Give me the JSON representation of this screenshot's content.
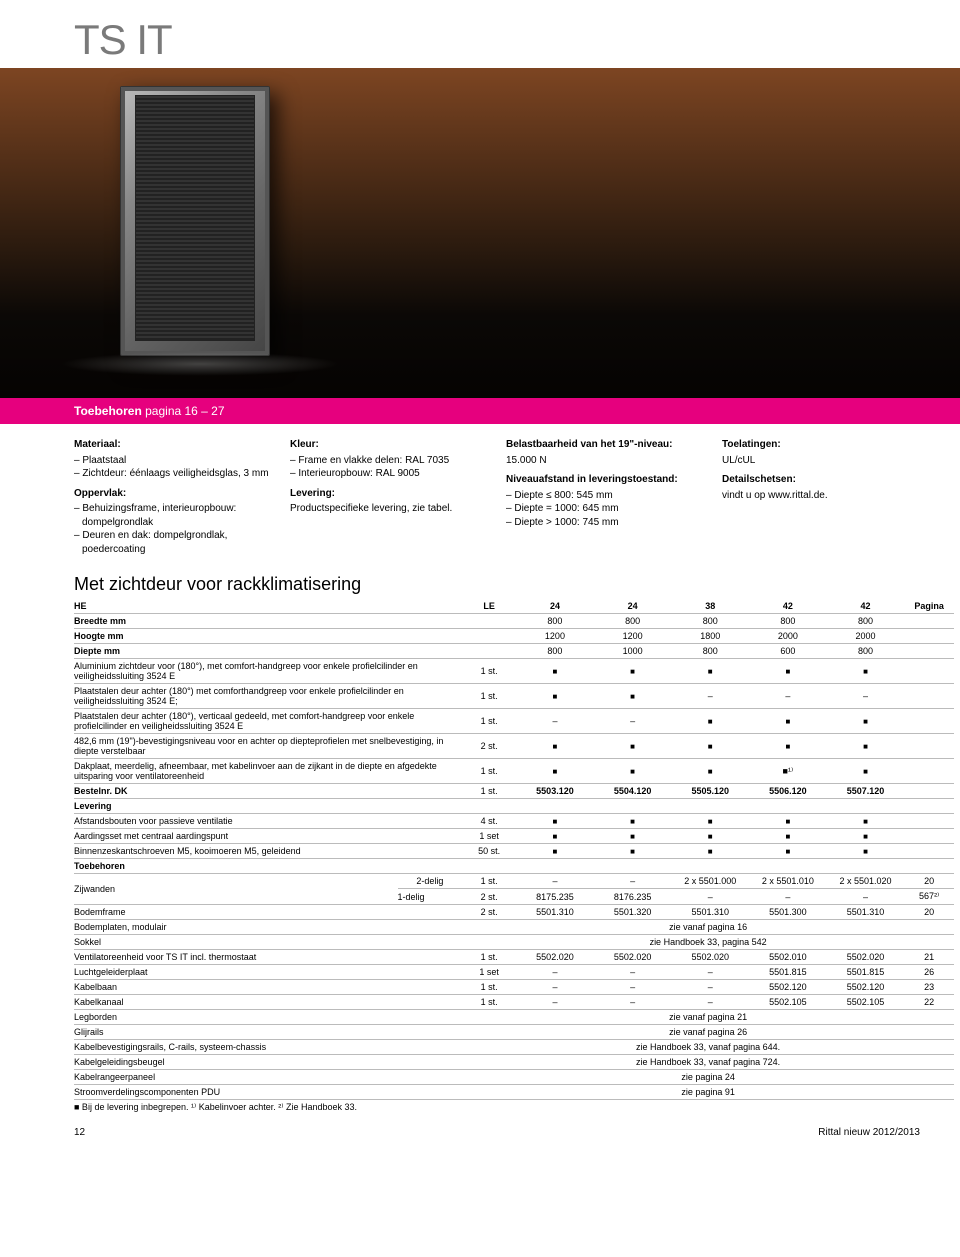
{
  "title": "TS IT",
  "toebehoren_bar": {
    "label": "Toebehoren",
    "range": "pagina 16 – 27"
  },
  "info": {
    "col1": {
      "heading1": "Materiaal:",
      "items1": [
        "Plaatstaal",
        "Zichtdeur: éénlaags veiligheidsglas, 3 mm"
      ],
      "heading2": "Oppervlak:",
      "items2": [
        "Behuizingsframe, interieur­opbouw: dompelgrondlak",
        "Deuren en dak: dompelgrondlak, poedercoating"
      ]
    },
    "col2": {
      "heading1": "Kleur:",
      "items1": [
        "Frame en vlakke delen: RAL 7035",
        "Interieuropbouw: RAL 9005"
      ],
      "heading2": "Levering:",
      "text2": "Productspecifieke levering, zie tabel."
    },
    "col3": {
      "heading1": "Belastbaarheid van het 19\"-niveau:",
      "text1": "15.000 N",
      "heading2": "Niveauafstand in leverings­toestand:",
      "items2": [
        "Diepte ≤ 800: 545 mm",
        "Diepte = 1000: 645 mm",
        "Diepte > 1000: 745 mm"
      ]
    },
    "col4": {
      "heading1": "Toelatingen:",
      "text1": "UL/cUL",
      "heading2": "Detailschetsen:",
      "text2": "vindt u op www.rittal.de."
    }
  },
  "section_title": "Met zichtdeur voor rackklimatisering",
  "head": {
    "he": "HE",
    "le": "LE",
    "cols": [
      "24",
      "24",
      "38",
      "42",
      "42"
    ],
    "pagina": "Pagina"
  },
  "dims": {
    "breedte": {
      "label": "Breedte mm",
      "vals": [
        "800",
        "800",
        "800",
        "800",
        "800"
      ]
    },
    "hoogte": {
      "label": "Hoogte mm",
      "vals": [
        "1200",
        "1200",
        "1800",
        "2000",
        "2000"
      ]
    },
    "diepte": {
      "label": "Diepte mm",
      "vals": [
        "800",
        "1000",
        "800",
        "600",
        "800"
      ]
    }
  },
  "rows": [
    {
      "label": "Aluminium zichtdeur voor (180°), met comfort-handgreep voor enkele profielcilinder en veiligheidssluiting 3524 E",
      "le": "1 st.",
      "v": [
        "■",
        "■",
        "■",
        "■",
        "■"
      ]
    },
    {
      "label": "Plaatstalen deur achter (180°) met comforthandgreep voor enkele profielcilinder en veiligheidssluiting 3524 E;",
      "le": "1 st.",
      "v": [
        "■",
        "■",
        "–",
        "–",
        "–"
      ]
    },
    {
      "label": "Plaatstalen deur achter (180°), verticaal gedeeld, met comfort-handgreep voor enkele profielcilinder en veiligheidssluiting 3524 E",
      "le": "1 st.",
      "v": [
        "–",
        "–",
        "■",
        "■",
        "■"
      ]
    },
    {
      "label": "482,6 mm (19\")-bevestigingsniveau voor en achter op diepteprofielen met snelbevestiging, in diepte verstelbaar",
      "le": "2 st.",
      "v": [
        "■",
        "■",
        "■",
        "■",
        "■"
      ]
    },
    {
      "label": "Dakplaat, meerdelig, afneembaar, met kabelinvoer aan de zijkant in de diepte en afgedekte uitsparing voor ventilatoreenheid",
      "le": "1 st.",
      "v": [
        "■",
        "■",
        "■",
        "■¹⁾",
        "■"
      ]
    }
  ],
  "bestelnr": {
    "label": "Bestelnr. DK",
    "le": "1 st.",
    "v": [
      "5503.120",
      "5504.120",
      "5505.120",
      "5506.120",
      "5507.120"
    ]
  },
  "levering_h": "Levering",
  "levering": [
    {
      "label": "Afstandsbouten voor passieve ventilatie",
      "le": "4 st.",
      "v": [
        "■",
        "■",
        "■",
        "■",
        "■"
      ]
    },
    {
      "label": "Aardingsset met centraal aardingspunt",
      "le": "1 set",
      "v": [
        "■",
        "■",
        "■",
        "■",
        "■"
      ]
    },
    {
      "label": "Binnenzeskantschroeven M5, kooimoeren M5, geleidend",
      "le": "50 st.",
      "v": [
        "■",
        "■",
        "■",
        "■",
        "■"
      ]
    }
  ],
  "toebehoren_h": "Toebehoren",
  "zijwanden": {
    "label": "Zijwanden",
    "r1": {
      "sub": "2-delig",
      "le": "1 st.",
      "v": [
        "–",
        "–",
        "2 x 5501.000",
        "2 x 5501.010",
        "2 x 5501.020"
      ],
      "page": "20"
    },
    "r2": {
      "sub": "1-delig",
      "le": "2 st.",
      "v": [
        "8175.235",
        "8176.235",
        "–",
        "–",
        "–"
      ],
      "page": "567²⁾"
    }
  },
  "toebehoren_rows": [
    {
      "label": "Bodemframe",
      "le": "2 st.",
      "v": [
        "5501.310",
        "5501.320",
        "5501.310",
        "5501.300",
        "5501.310"
      ],
      "page": "20"
    },
    {
      "label": "Bodemplaten, modulair",
      "merge": "zie vanaf pagina 16"
    },
    {
      "label": "Sokkel",
      "merge": "zie Handboek 33, pagina 542"
    },
    {
      "label": "Ventilatoreenheid voor TS IT incl. thermostaat",
      "le": "1 st.",
      "v": [
        "5502.020",
        "5502.020",
        "5502.020",
        "5502.010",
        "5502.020"
      ],
      "page": "21"
    },
    {
      "label": "Luchtgeleiderplaat",
      "le": "1 set",
      "v": [
        "–",
        "–",
        "–",
        "5501.815",
        "5501.815"
      ],
      "page": "26"
    },
    {
      "label": "Kabelbaan",
      "le": "1 st.",
      "v": [
        "–",
        "–",
        "–",
        "5502.120",
        "5502.120"
      ],
      "page": "23"
    },
    {
      "label": "Kabelkanaal",
      "le": "1 st.",
      "v": [
        "–",
        "–",
        "–",
        "5502.105",
        "5502.105"
      ],
      "page": "22"
    },
    {
      "label": "Legborden",
      "merge": "zie vanaf pagina 21"
    },
    {
      "label": "Glijrails",
      "merge": "zie vanaf pagina 26"
    },
    {
      "label": "Kabelbevestigingsrails, C-rails, systeem-chassis",
      "merge": "zie Handboek 33, vanaf pagina 644."
    },
    {
      "label": "Kabelgeleidingsbeugel",
      "merge": "zie Handboek 33, vanaf pagina 724."
    },
    {
      "label": "Kabelrangeerpaneel",
      "merge": "zie pagina 24"
    },
    {
      "label": "Stroomverdelingscomponenten PDU",
      "merge": "zie pagina 91"
    }
  ],
  "footnotes": "■ Bij de levering inbegrepen.   ¹⁾ Kabelinvoer achter.   ²⁾ Zie Handboek 33.",
  "footer": {
    "page": "12",
    "right": "Rittal nieuw 2012/2013"
  }
}
